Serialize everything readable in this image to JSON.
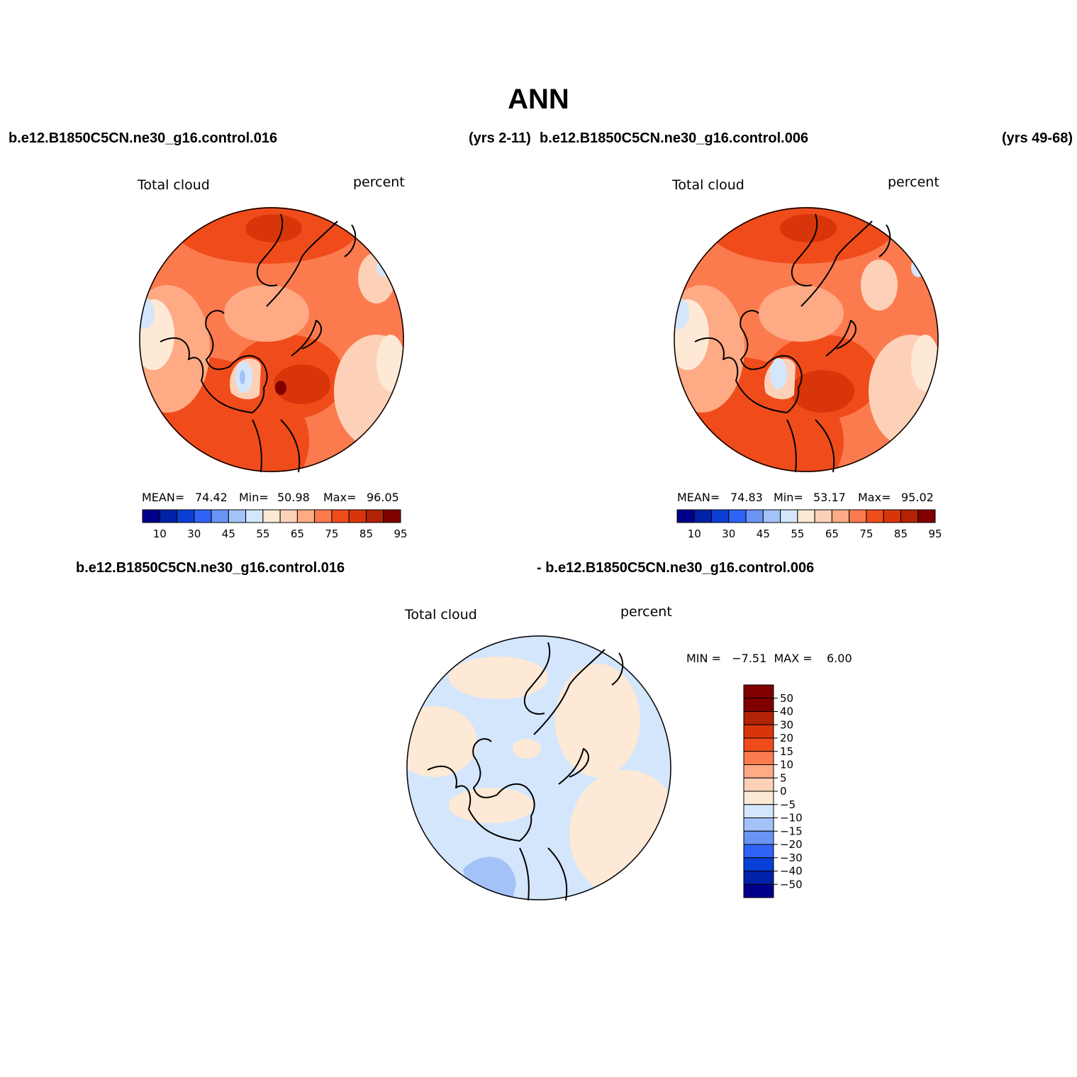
{
  "figure": {
    "title": "ANN",
    "top_left_case": "b.e12.B1850C5CN.ne30_g16.control.016",
    "top_left_years": "(yrs 2-11)",
    "top_right_case": "b.e12.B1850C5CN.ne30_g16.control.006",
    "top_right_years": "(yrs 49-68)",
    "diff_case_a": "b.e12.B1850C5CN.ne30_g16.control.016",
    "diff_case_b": "- b.e12.B1850C5CN.ne30_g16.control.006"
  },
  "panels": [
    {
      "variable": "Total cloud",
      "units": "percent",
      "mean_label": "MEAN=",
      "mean_value": "74.42",
      "min_label": "Min=",
      "min_value": "50.98",
      "max_label": "Max=",
      "max_value": "96.05"
    },
    {
      "variable": "Total cloud",
      "units": "percent",
      "mean_label": "MEAN=",
      "mean_value": "74.83",
      "min_label": "Min=",
      "min_value": "53.17",
      "max_label": "Max=",
      "max_value": "95.02"
    },
    {
      "variable": "Total cloud",
      "units": "percent",
      "minmax_text": "MIN =   −7.51  MAX =    6.00"
    }
  ],
  "colorbars": {
    "field": {
      "colors": [
        "#00008c",
        "#0022a8",
        "#0a3fd6",
        "#2e63f5",
        "#6b95f5",
        "#a3c2f8",
        "#d4e6fc",
        "#fde9d6",
        "#fdd1b8",
        "#fdaa85",
        "#fb7b4f",
        "#f04c1b",
        "#d8360a",
        "#b22205",
        "#800000"
      ],
      "tick_labels": [
        "10",
        "30",
        "45",
        "55",
        "65",
        "75",
        "85",
        "95"
      ]
    },
    "diff": {
      "colors": [
        "#00008c",
        "#0022a8",
        "#0a3fd6",
        "#2e63f5",
        "#6b95f5",
        "#a3c2f8",
        "#d4e6fc",
        "#fde9d6",
        "#fdd1b8",
        "#fdaa85",
        "#fb7b4f",
        "#f04c1b",
        "#d8360a",
        "#b22205",
        "#800000",
        "#800000"
      ],
      "tick_labels": [
        "50",
        "40",
        "30",
        "20",
        "15",
        "10",
        "5",
        "0",
        "−5",
        "−10",
        "−15",
        "−20",
        "−30",
        "−40",
        "−50"
      ]
    }
  }
}
